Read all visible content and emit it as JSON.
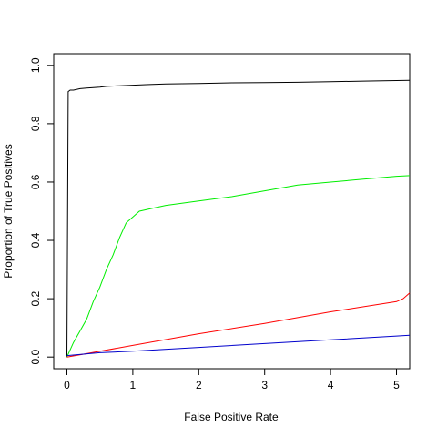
{
  "chart_data": {
    "type": "line",
    "title": "",
    "xlabel": "False Positive Rate",
    "ylabel": "Proportion of True Positives",
    "xlim": [
      -0.2,
      5.2
    ],
    "ylim": [
      -0.04,
      1.04
    ],
    "xticks": [
      0,
      1,
      2,
      3,
      4,
      5
    ],
    "yticks": [
      0.0,
      0.2,
      0.4,
      0.6,
      0.8,
      1.0
    ],
    "xtick_labels": [
      "0",
      "1",
      "2",
      "3",
      "4",
      "5"
    ],
    "ytick_labels": [
      "0.0",
      "0.2",
      "0.4",
      "0.6",
      "0.8",
      "1.0"
    ],
    "grid": false,
    "legend": "none",
    "series": [
      {
        "color": "#000000",
        "x": [
          0,
          0.02,
          0.05,
          0.1,
          0.2,
          0.3,
          0.5,
          0.6,
          0.8,
          1.0,
          1.2,
          1.5,
          2.0,
          2.5,
          3.0,
          3.5,
          4.0,
          4.5,
          5.0,
          5.2
        ],
        "y": [
          0.0,
          0.91,
          0.915,
          0.915,
          0.92,
          0.922,
          0.925,
          0.928,
          0.93,
          0.932,
          0.934,
          0.936,
          0.938,
          0.94,
          0.941,
          0.942,
          0.944,
          0.946,
          0.948,
          0.949
        ]
      },
      {
        "color": "#00ee00",
        "x": [
          0,
          0.1,
          0.2,
          0.3,
          0.4,
          0.5,
          0.6,
          0.7,
          0.8,
          0.9,
          1.0,
          1.1,
          1.3,
          1.5,
          2.0,
          2.5,
          3.0,
          3.5,
          4.0,
          4.5,
          5.0,
          5.2
        ],
        "y": [
          0.0,
          0.05,
          0.09,
          0.13,
          0.19,
          0.24,
          0.3,
          0.35,
          0.41,
          0.46,
          0.48,
          0.5,
          0.51,
          0.52,
          0.535,
          0.55,
          0.57,
          0.59,
          0.6,
          0.61,
          0.62,
          0.622
        ]
      },
      {
        "color": "#ff0000",
        "x": [
          0,
          1,
          2,
          3,
          4,
          5,
          5.1,
          5.2
        ],
        "y": [
          0.0,
          0.04,
          0.08,
          0.115,
          0.155,
          0.19,
          0.2,
          0.22
        ]
      },
      {
        "color": "#0000cc",
        "x": [
          0,
          0.5,
          1,
          2,
          3,
          4,
          5,
          5.2
        ],
        "y": [
          0.005,
          0.015,
          0.02,
          0.033,
          0.046,
          0.059,
          0.072,
          0.075
        ]
      }
    ]
  }
}
